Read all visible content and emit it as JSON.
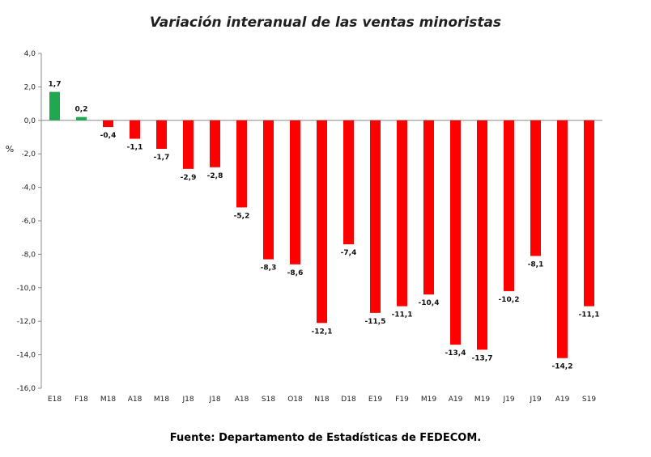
{
  "chart_data": {
    "type": "bar",
    "title": "Variación interanual de las ventas minoristas",
    "ylabel": "%",
    "xlabel": "",
    "ylim": [
      -16,
      4
    ],
    "yticks": [
      "4,0",
      "2,0",
      "0,0",
      "-2,0",
      "-4,0",
      "-6,0",
      "-8,0",
      "-10,0",
      "-12,0",
      "-14,0",
      "-16,0"
    ],
    "categories": [
      "E18",
      "F18",
      "M18",
      "A18",
      "M18",
      "J18",
      "J18",
      "A18",
      "S18",
      "O18",
      "N18",
      "D18",
      "E19",
      "F19",
      "M19",
      "A19",
      "M19",
      "J19",
      "J19",
      "A19",
      "S19"
    ],
    "values": [
      1.7,
      0.2,
      -0.4,
      -1.1,
      -1.7,
      -2.9,
      -2.8,
      -5.2,
      -8.3,
      -8.6,
      -12.1,
      -7.4,
      -11.5,
      -11.1,
      -10.4,
      -13.4,
      -13.7,
      -10.2,
      -8.1,
      -14.2,
      -11.1
    ],
    "value_labels": [
      "1,7",
      "0,2",
      "-0,4",
      "-1,1",
      "-1,7",
      "-2,9",
      "-2,8",
      "-5,2",
      "-8,3",
      "-8,6",
      "-12,1",
      "-7,4",
      "-11,5",
      "-11,1",
      "-10,4",
      "-13,4",
      "-13,7",
      "-10,2",
      "-8,1",
      "-14,2",
      "-11,1"
    ],
    "colors": {
      "positive": "#1fa84f",
      "negative": "#ff0000"
    },
    "grid": false,
    "legend": "none"
  },
  "source": "Fuente: Departamento de Estadísticas de FEDECOM."
}
